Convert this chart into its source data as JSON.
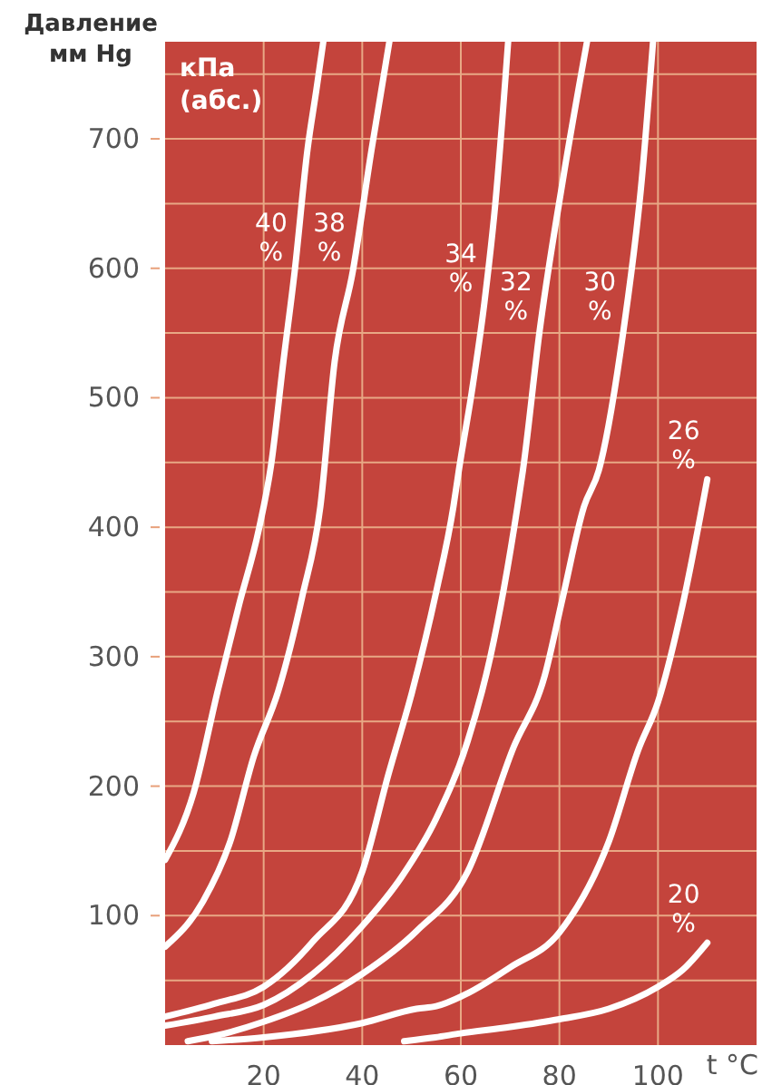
{
  "chart_data": {
    "type": "line",
    "ylabel": "Давление мм Hg",
    "xlabel": "t °C",
    "annotations": [
      "кПа (абс.)"
    ],
    "xlim": [
      0,
      120
    ],
    "ylim": [
      0,
      775
    ],
    "xticks": [
      20,
      40,
      60,
      80,
      100
    ],
    "yticks": [
      {
        "value": 50,
        "label": null
      },
      100,
      {
        "value": 150,
        "label": null
      },
      200,
      {
        "value": 250,
        "label": null
      },
      300,
      {
        "value": 350,
        "label": null
      },
      400,
      {
        "value": 450,
        "label": null
      },
      500,
      {
        "value": 550,
        "label": null
      },
      600,
      {
        "value": 650,
        "label": null
      },
      700,
      {
        "value": 750,
        "label": null
      }
    ],
    "grid": true,
    "marker": "none",
    "line_style": "solid",
    "series": [
      {
        "name": "40 %",
        "color": "#ffffff",
        "x": [
          0,
          5.8,
          10.7,
          15,
          19,
          21.5,
          24,
          26.3,
          28.9,
          30.7,
          32.1
        ],
        "values": [
          143,
          195,
          274,
          340,
          398,
          448,
          528,
          598,
          692,
          738,
          775
        ]
      },
      {
        "name": "38 %",
        "color": "#ffffff",
        "x": [
          0,
          7.7,
          13.2,
          18,
          23,
          27.8,
          31.5,
          34.4,
          38.1,
          41.9,
          45.5
        ],
        "values": [
          76,
          111,
          157,
          223,
          274,
          346,
          416,
          528,
          598,
          692,
          775
        ]
      },
      {
        "name": "34 %",
        "color": "#ffffff",
        "x": [
          0,
          10,
          20,
          30,
          40,
          45.3,
          50.2,
          55,
          58.5,
          59.6,
          62.2,
          64.8,
          67,
          69.6
        ],
        "values": [
          22,
          32,
          45,
          80,
          134,
          209,
          274,
          350,
          416,
          444,
          504,
          574,
          650,
          775
        ]
      },
      {
        "name": "32 %",
        "color": "#ffffff",
        "x": [
          0,
          10,
          20,
          30,
          40,
          48,
          55,
          61.4,
          66,
          71.5,
          72.6,
          76,
          80.7,
          85.6
        ],
        "values": [
          15,
          22,
          31,
          55,
          92,
          130,
          175,
          235,
          300,
          416,
          444,
          552,
          668,
          775
        ]
      },
      {
        "name": "30 %",
        "color": "#ffffff",
        "x": [
          4.6,
          10,
          20,
          30,
          40,
          51,
          61.4,
          70.7,
          77,
          80.7,
          85,
          88,
          93,
          96.7,
          99
        ],
        "values": [
          3,
          7,
          18,
          33,
          55,
          88,
          134,
          230,
          285,
          346,
          416,
          444,
          552,
          668,
          775
        ]
      },
      {
        "name": "26 %",
        "color": "#ffffff",
        "x": [
          9.5,
          20,
          40,
          51,
          55,
          61.4,
          70,
          80,
          90,
          96,
          100,
          105,
          110
        ],
        "values": [
          3,
          6,
          17,
          28,
          30,
          40,
          60,
          87,
          157,
          228,
          265,
          340,
          437
        ]
      },
      {
        "name": "20 %",
        "color": "#ffffff",
        "x": [
          48.5,
          54.8,
          60,
          70,
          80,
          90,
          100,
          105,
          110
        ],
        "values": [
          3,
          6,
          9,
          14,
          20,
          28,
          45,
          58,
          79
        ]
      }
    ]
  }
}
